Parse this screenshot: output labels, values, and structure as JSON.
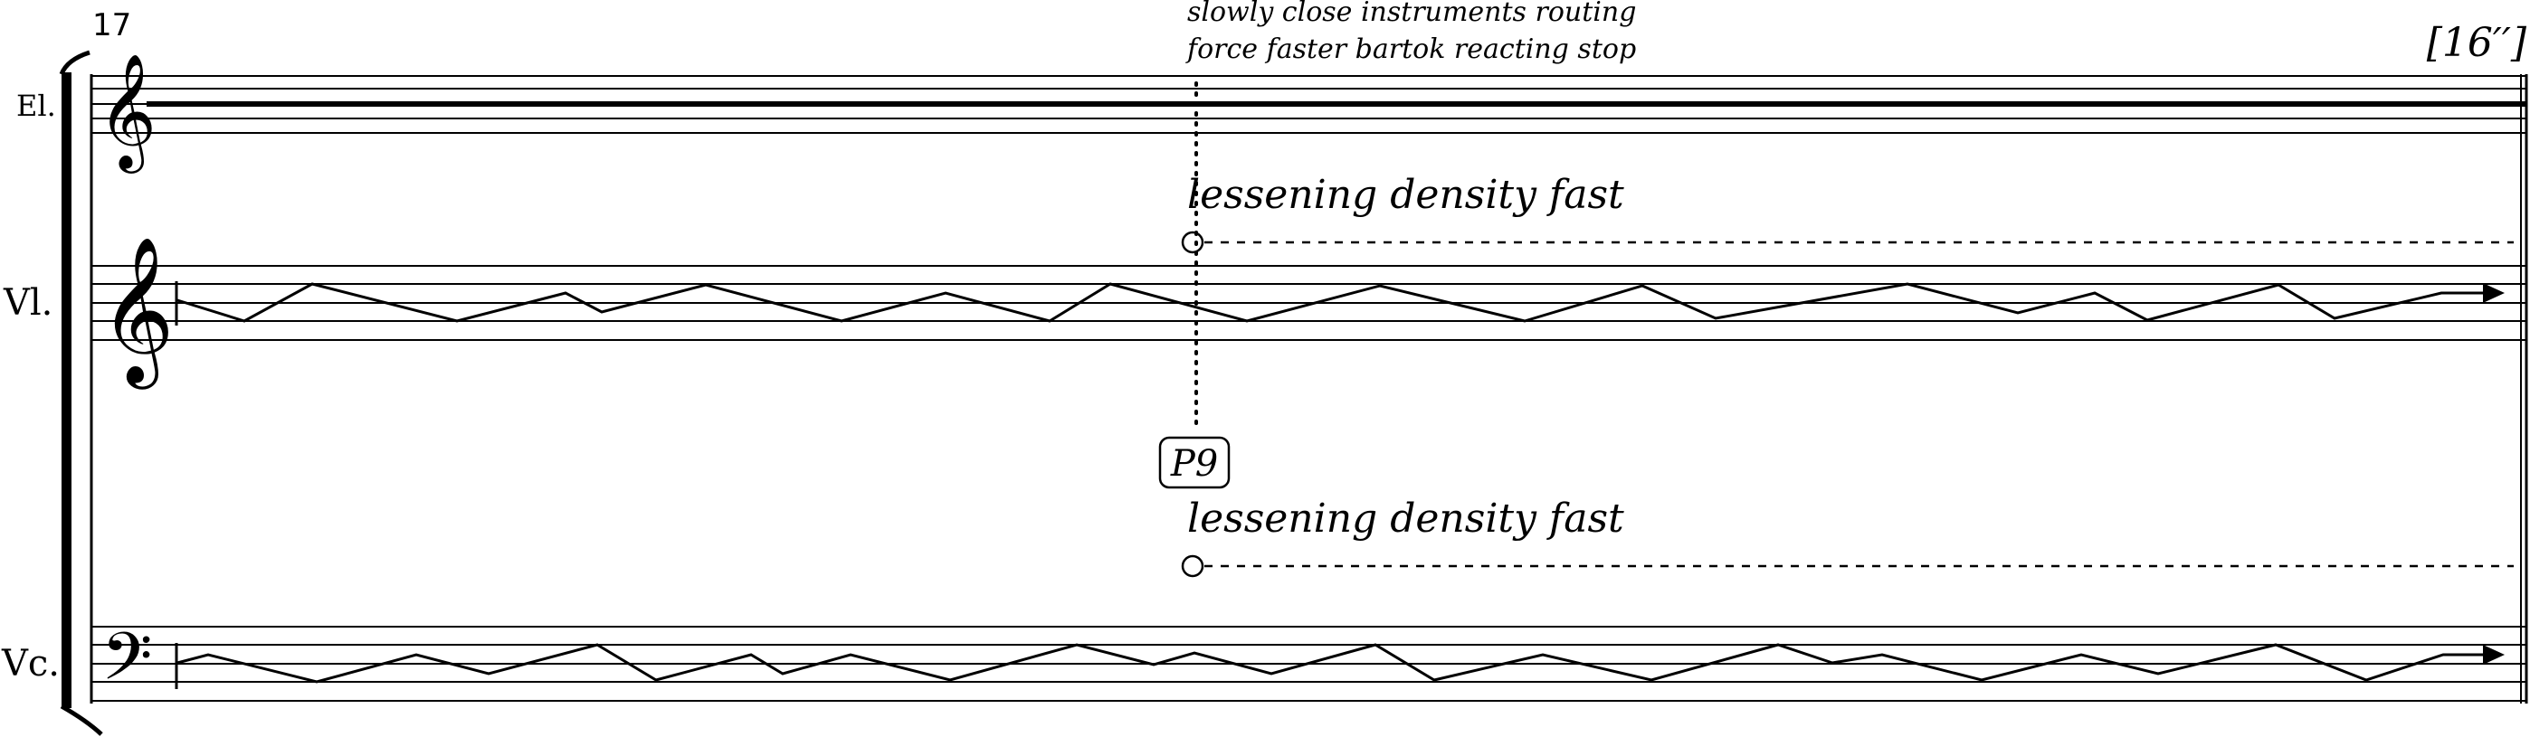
{
  "score": {
    "measure_number": "17",
    "time_marker": "[16′′]",
    "instructions": {
      "line1": "slowly close instruments routing",
      "line2": "force faster bartok reacting stop"
    },
    "cue_box": "P9",
    "instruments": [
      {
        "name": "El.",
        "clef": "treble",
        "clef_glyph": "𝄞"
      },
      {
        "name": "Vl.",
        "clef": "treble",
        "clef_glyph": "𝄞",
        "expression": "lessening density fast"
      },
      {
        "name": "Vc.",
        "clef": "bass",
        "clef_glyph": "𝄢",
        "expression": "lessening density fast"
      }
    ]
  }
}
